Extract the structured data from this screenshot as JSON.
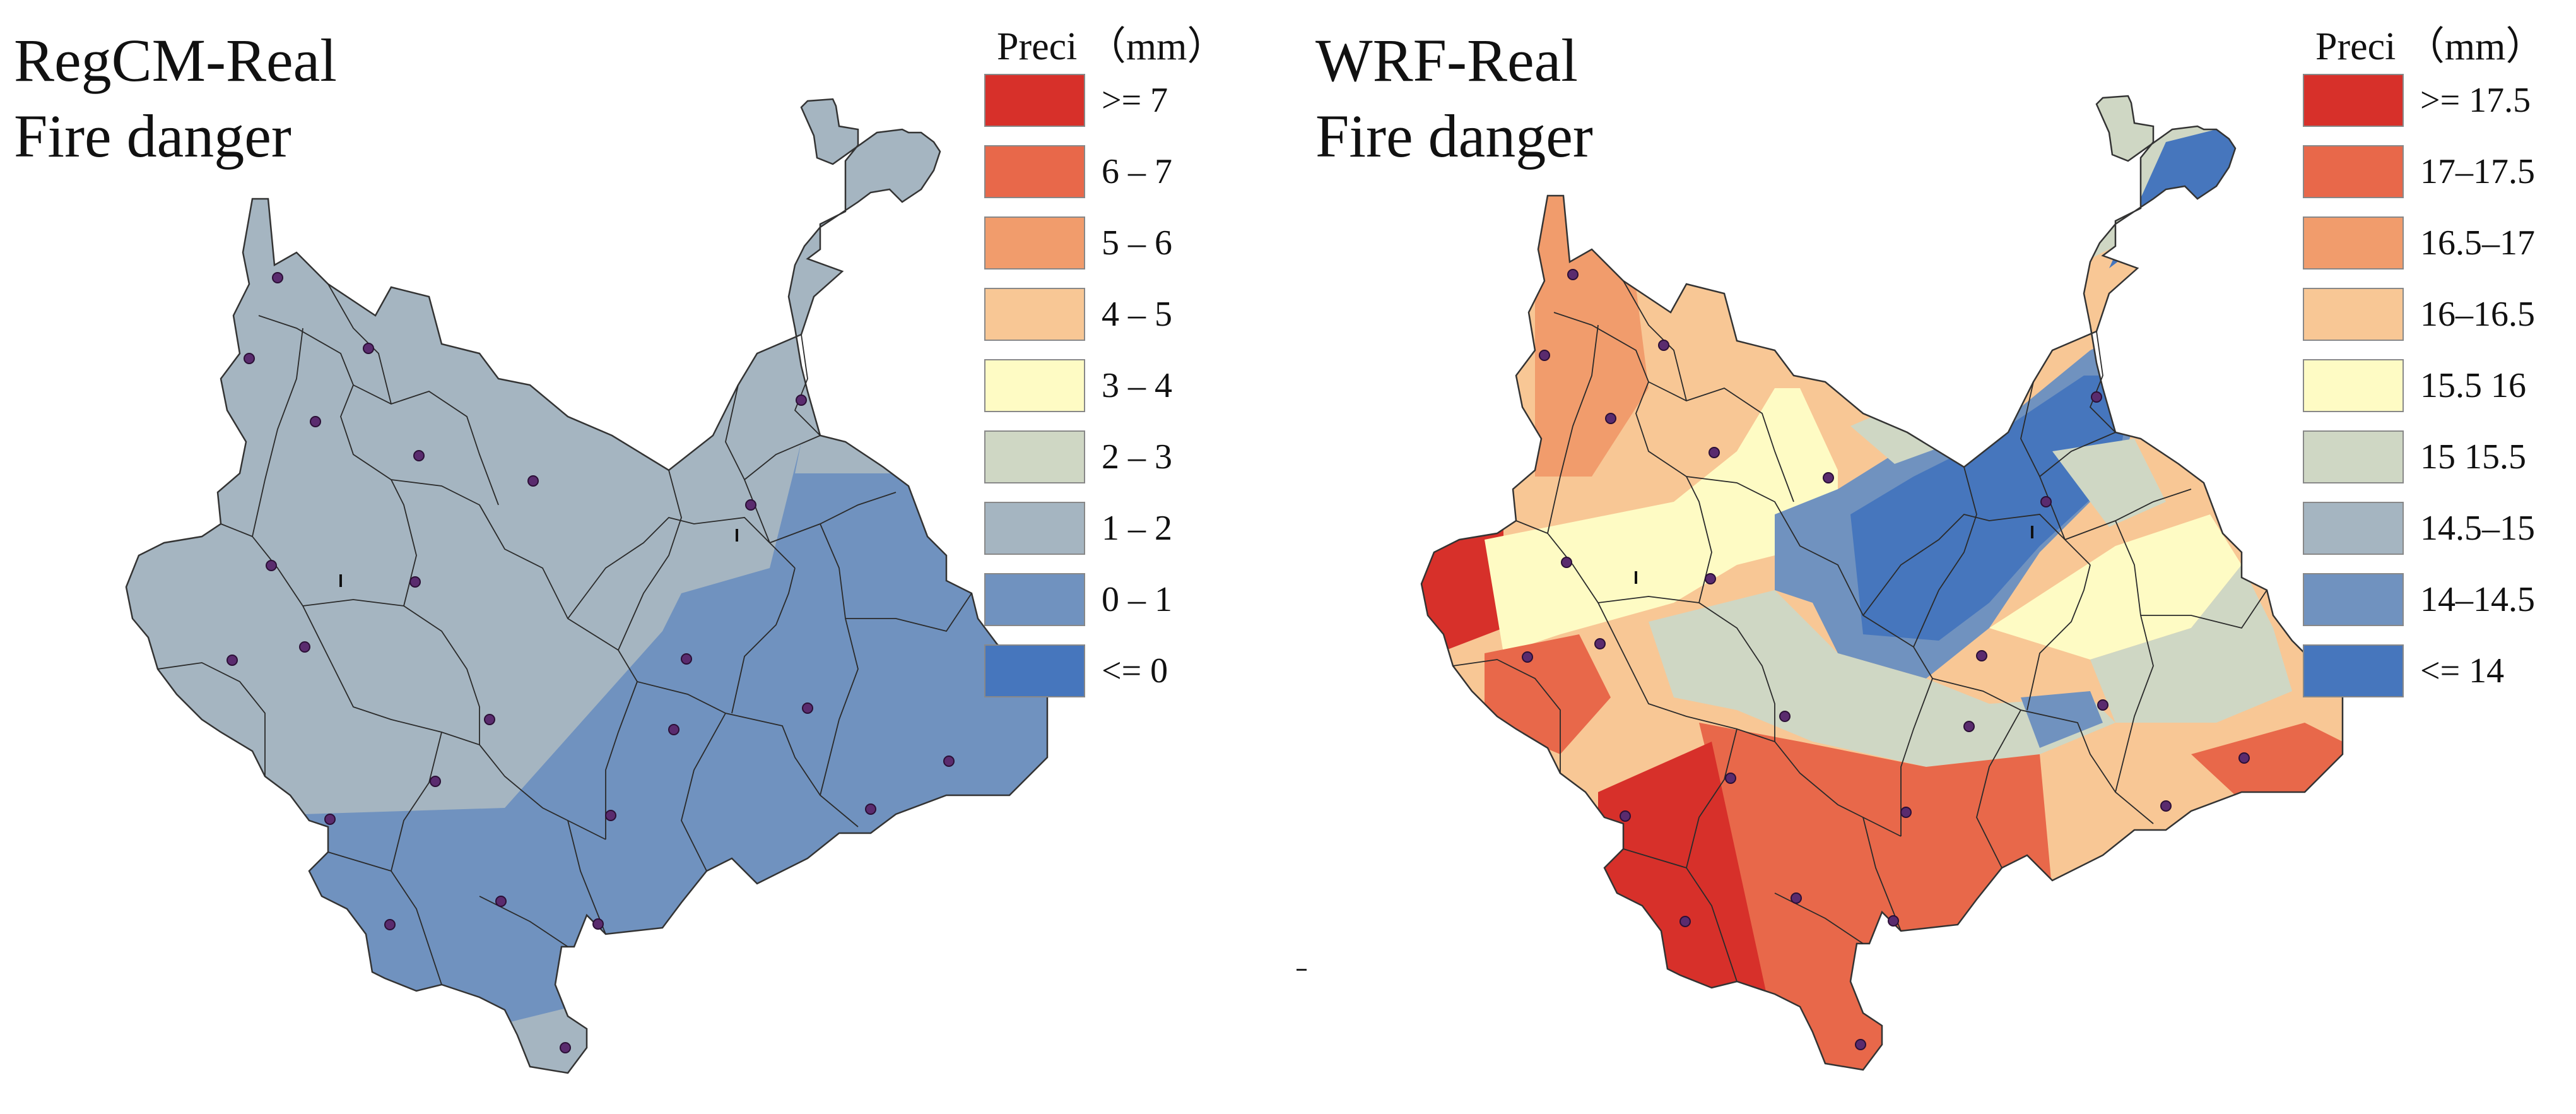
{
  "left": {
    "title_line1": "RegCM-Real",
    "title_line2": "Fire danger",
    "legend_title": "Preci （mm）",
    "legend": [
      {
        "label": ">= 7",
        "color": "#d7302a"
      },
      {
        "label": "6 – 7",
        "color": "#e8684a"
      },
      {
        "label": "5 – 6",
        "color": "#f19c6c"
      },
      {
        "label": "4 – 5",
        "color": "#f8c795"
      },
      {
        "label": "3 – 4",
        "color": "#fefbc4"
      },
      {
        "label": "2 – 3",
        "color": "#cfd7c4"
      },
      {
        "label": "1 – 2",
        "color": "#a5b5c1"
      },
      {
        "label": "0 – 1",
        "color": "#7092bf"
      },
      {
        "label": "<= 0",
        "color": "#4676bd"
      }
    ]
  },
  "right": {
    "title_line1": "WRF-Real",
    "title_line2": "Fire danger",
    "legend_title": "Preci （mm）",
    "legend": [
      {
        "label": ">= 17.5",
        "color": "#d7302a"
      },
      {
        "label": "17–17.5",
        "color": "#e8684a"
      },
      {
        "label": "16.5–17",
        "color": "#f19c6c"
      },
      {
        "label": "16–16.5",
        "color": "#f8c795"
      },
      {
        "label": "15.5 16",
        "color": "#fefbc4"
      },
      {
        "label": "15 15.5",
        "color": "#cfd7c4"
      },
      {
        "label": "14.5–15",
        "color": "#a5b5c1"
      },
      {
        "label": "14–14.5",
        "color": "#7092bf"
      },
      {
        "label": "<= 14",
        "color": "#4676bd"
      }
    ]
  }
}
